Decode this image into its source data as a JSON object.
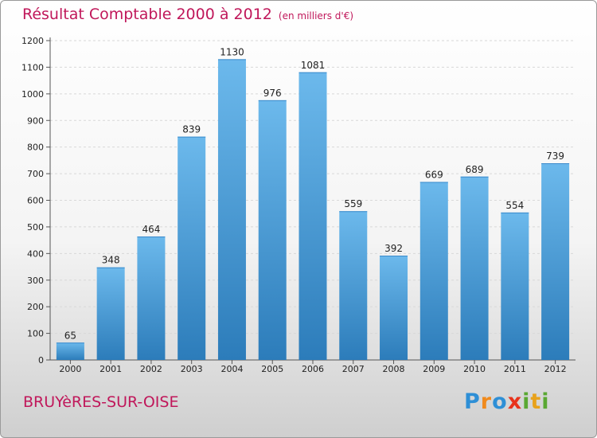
{
  "header": {
    "title": "Résultat Comptable 2000 à 2012",
    "subtitle": "(en milliers d'€)"
  },
  "footer": {
    "location": "BRUYèRES-SUR-OISE",
    "logo_letters": [
      {
        "ch": "P",
        "color": "#2e8fd6"
      },
      {
        "ch": "r",
        "color": "#f08a1c"
      },
      {
        "ch": "o",
        "color": "#2e8fd6"
      },
      {
        "ch": "x",
        "color": "#e8331c"
      },
      {
        "ch": "i",
        "color": "#5aa832"
      },
      {
        "ch": "t",
        "color": "#e8a21c"
      },
      {
        "ch": "i",
        "color": "#5aa832"
      }
    ]
  },
  "colors": {
    "bar_top": "#6cb9ec",
    "bar_bottom": "#2c7cba",
    "accent": "#c0175a"
  },
  "chart_data": {
    "type": "bar",
    "categories": [
      "2000",
      "2001",
      "2002",
      "2003",
      "2004",
      "2005",
      "2006",
      "2007",
      "2008",
      "2009",
      "2010",
      "2011",
      "2012"
    ],
    "values": [
      65,
      348,
      464,
      839,
      1130,
      976,
      1081,
      559,
      392,
      669,
      689,
      554,
      739
    ],
    "ylim": [
      0,
      1200
    ],
    "yticks": [
      0,
      100,
      200,
      300,
      400,
      500,
      600,
      700,
      800,
      900,
      1000,
      1100,
      1200
    ],
    "grid": true
  }
}
